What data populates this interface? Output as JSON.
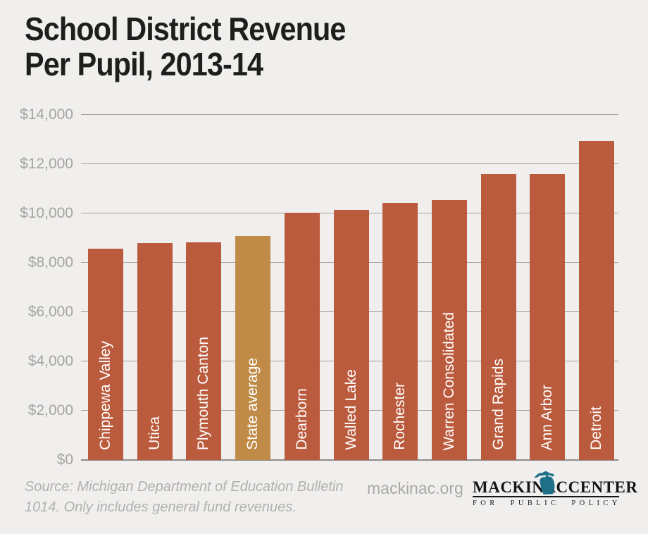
{
  "title": {
    "line1": "School District Revenue",
    "line2": "Per Pupil, 2013-14"
  },
  "footer": {
    "source_line1": "Source: Michigan Department of Education Bulletin",
    "source_line2": "1014. Only includes general fund revenues.",
    "website": "mackinac.org",
    "logo": {
      "word1": "MACKINAC",
      "word2": "CENTER",
      "tagline": "FOR PUBLIC POLICY",
      "icon": "michigan-state-silhouette",
      "icon_color": "#1e6f87"
    }
  },
  "chart_data": {
    "type": "bar",
    "title": "School District Revenue Per Pupil, 2013-14",
    "categories": [
      "Chippewa Valley",
      "Utica",
      "Plymouth Canton",
      "State average",
      "Dearborn",
      "Walled Lake",
      "Rochester",
      "Warren Consolidated",
      "Grand Rapids",
      "Ann Arbor",
      "Detroit"
    ],
    "values": [
      8570,
      8800,
      8820,
      9090,
      10020,
      10150,
      10430,
      10550,
      11590,
      11600,
      12950
    ],
    "highlight_category": "State average",
    "xlabel": "",
    "ylabel": "",
    "ylim": [
      0,
      14000
    ],
    "yticks": [
      {
        "label": "$0",
        "value": 0
      },
      {
        "label": "$2,000",
        "value": 2000
      },
      {
        "label": "$4,000",
        "value": 4000
      },
      {
        "label": "$6,000",
        "value": 6000
      },
      {
        "label": "$8,000",
        "value": 8000
      },
      {
        "label": "$10,000",
        "value": 10000
      },
      {
        "label": "$12,000",
        "value": 12000
      },
      {
        "label": "$14,000",
        "value": 14000
      }
    ],
    "grid": true,
    "legend": "none",
    "bar_color": "#bb5b3d",
    "highlight_color": "#c08b46",
    "label_placement": "inside-bottom-vertical"
  },
  "colors": {
    "background": "#f0efee",
    "gridline": "#a3a2a0",
    "axis_baseline": "#8d8c8a",
    "axis_text": "#a5a4a2",
    "title_text": "#1e1e1c",
    "footer_text": "#b2b1af",
    "bar_label_text": "#ffffff"
  }
}
